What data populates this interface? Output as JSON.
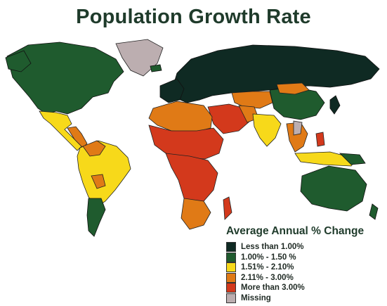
{
  "title": "Population Growth Rate",
  "legend": {
    "title": "Average Annual % Change",
    "items": [
      {
        "label": "Less than 1.00%",
        "color": "#0f2a23"
      },
      {
        "label": "1.00% - 1.50 %",
        "color": "#1f5b2e"
      },
      {
        "label": "1.51% - 2.10%",
        "color": "#f7d91a"
      },
      {
        "label": "2.11% - 3.00%",
        "color": "#e07a16"
      },
      {
        "label": "More than 3.00%",
        "color": "#d3391c"
      },
      {
        "label": "Missing",
        "color": "#bcaeb0"
      }
    ]
  }
}
